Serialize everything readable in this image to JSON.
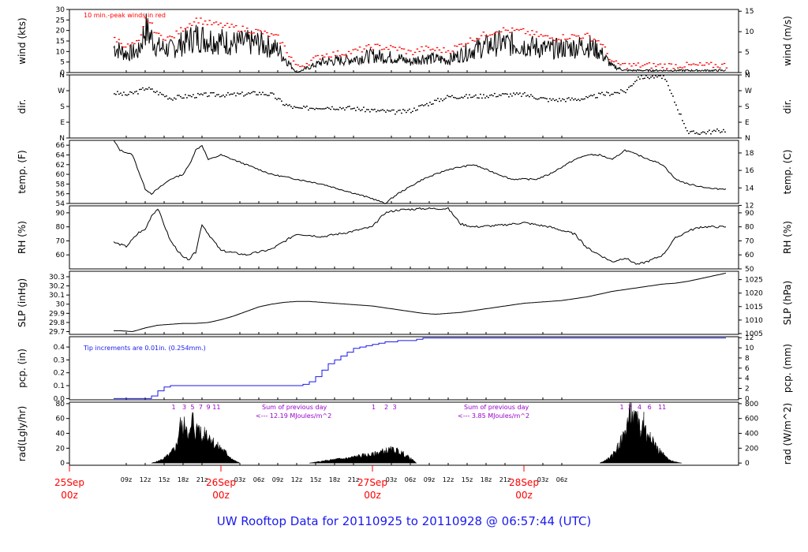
{
  "footer": {
    "prefix": "UW Rooftop Data for ",
    "start": "20110925",
    "to_word": "to",
    "end": "20110928",
    "at_word": "@",
    "time": "06:57:44",
    "tz": "(UTC)",
    "color": "#1a1aee"
  },
  "colors": {
    "trace": "#000000",
    "peak": "#ff0000",
    "precip": "#1a1aee",
    "radiation_labels": "#9900cc",
    "date_labels": "#ff0000"
  },
  "time_axis": {
    "tick_labels": [
      "09z",
      "12z",
      "15z",
      "18z",
      "21z",
      "03z",
      "06z",
      "09z",
      "12z",
      "15z",
      "18z",
      "21z",
      "03z",
      "06z",
      "09z",
      "12z",
      "15z",
      "18z",
      "21z",
      "03z",
      "06z"
    ],
    "date_labels": [
      {
        "day": "25Sep",
        "hour": "00z"
      },
      {
        "day": "26Sep",
        "hour": "00z"
      },
      {
        "day": "27Sep",
        "hour": "00z"
      },
      {
        "day": "28Sep",
        "hour": "00z"
      }
    ]
  },
  "chart_data": [
    {
      "type": "line",
      "ylabel": "wind (kts)",
      "ylabel_right": "wind (m/s)",
      "yticks": [
        0,
        5,
        10,
        15,
        20,
        25,
        30
      ],
      "yticks_right": [
        0,
        5,
        10,
        15
      ],
      "annotation": "10 min.-peak winds in red",
      "series": [
        {
          "x": [
            7,
            9,
            11,
            12,
            14,
            16,
            18,
            20,
            22,
            26,
            30,
            33,
            36,
            40,
            44,
            48,
            52,
            54,
            56,
            60,
            64,
            68,
            72,
            76,
            80,
            82,
            84,
            86,
            88,
            90,
            94,
            98,
            102,
            104
          ],
          "values": [
            12,
            9,
            10,
            21,
            12,
            11,
            14,
            17,
            16,
            14,
            14,
            11,
            0,
            5,
            6,
            8,
            7,
            5,
            7,
            6,
            11,
            14,
            13,
            11,
            12,
            13,
            10,
            3,
            1,
            1,
            1,
            1,
            1,
            1
          ]
        },
        {
          "x": [
            7,
            9,
            11,
            12,
            14,
            16,
            18,
            20,
            22,
            26,
            30,
            33,
            36,
            40,
            44,
            48,
            52,
            54,
            56,
            60,
            64,
            68,
            72,
            76,
            80,
            82,
            84,
            86,
            88,
            90,
            94,
            98,
            102,
            104
          ],
          "values": [
            16,
            12,
            14,
            26,
            17,
            16,
            21,
            25,
            23,
            21,
            19,
            16,
            2,
            8,
            9,
            12,
            11,
            9,
            11,
            10,
            16,
            20,
            19,
            16,
            17,
            17,
            14,
            4,
            3,
            3,
            3,
            3,
            3,
            3
          ]
        }
      ]
    },
    {
      "type": "scatter",
      "ylabel": "dir.",
      "ylabel_right": "dir.",
      "yticks": [
        "N",
        "E",
        "S",
        "W",
        "N"
      ],
      "yticks_right": [
        "N",
        "E",
        "S",
        "W",
        "N"
      ],
      "series": [
        {
          "x": [
            7,
            9,
            11,
            12,
            14,
            16,
            18,
            20,
            22,
            26,
            30,
            32,
            34,
            36,
            40,
            44,
            48,
            52,
            54,
            56,
            60,
            64,
            68,
            72,
            76,
            80,
            82,
            84,
            86,
            88,
            90,
            94,
            98,
            102,
            104
          ],
          "values": [
            260,
            250,
            270,
            290,
            260,
            230,
            240,
            245,
            250,
            250,
            260,
            250,
            195,
            170,
            180,
            175,
            160,
            150,
            160,
            190,
            240,
            240,
            250,
            250,
            220,
            225,
            230,
            250,
            260,
            270,
            350,
            355,
            30,
            40,
            50
          ]
        }
      ]
    },
    {
      "type": "line",
      "ylabel": "temp. (F)",
      "ylabel_right": "temp. (C)",
      "yticks": [
        54,
        56,
        58,
        60,
        62,
        64,
        66
      ],
      "yticks_right": [
        12,
        14,
        16,
        18
      ],
      "series": [
        {
          "x": [
            7,
            8,
            10,
            12,
            13,
            14,
            16,
            18,
            19,
            20,
            21,
            22,
            24,
            28,
            32,
            36,
            40,
            44,
            48,
            50,
            52,
            56,
            60,
            64,
            68,
            70,
            72,
            74,
            76,
            80,
            82,
            84,
            86,
            88,
            90,
            92,
            94,
            96,
            98,
            100,
            102,
            104
          ],
          "values": [
            67,
            65,
            64,
            57,
            56,
            57,
            59,
            60,
            62,
            65,
            66,
            63,
            64,
            62,
            60,
            59,
            58,
            56.5,
            55,
            54,
            56,
            59,
            61,
            62,
            60,
            59,
            59,
            59,
            60,
            63,
            64,
            64,
            63,
            65,
            64,
            63,
            62,
            59,
            58,
            57.5,
            57,
            57
          ]
        }
      ]
    },
    {
      "type": "line",
      "ylabel": "RH (%)",
      "ylabel_right": "RH (%)",
      "yticks": [
        60,
        70,
        80,
        90
      ],
      "yticks_right": [
        50,
        60,
        70,
        80,
        90
      ],
      "series": [
        {
          "x": [
            7,
            9,
            11,
            12,
            13,
            14,
            16,
            18,
            19,
            20,
            21,
            22,
            24,
            28,
            32,
            36,
            40,
            44,
            48,
            50,
            52,
            56,
            60,
            62,
            64,
            68,
            72,
            76,
            80,
            82,
            84,
            86,
            88,
            90,
            92,
            94,
            96,
            98,
            100,
            104
          ],
          "values": [
            69,
            66,
            76,
            78,
            88,
            93,
            70,
            58,
            57,
            62,
            82,
            75,
            63,
            60,
            64,
            75,
            73,
            76,
            80,
            90,
            92,
            93,
            93,
            82,
            80,
            81,
            83,
            80,
            75,
            65,
            60,
            55,
            58,
            53,
            56,
            60,
            72,
            77,
            80,
            80
          ]
        }
      ]
    },
    {
      "type": "line",
      "ylabel": "SLP (inHg)",
      "ylabel_right": "SLP (hPa)",
      "yticks": [
        29.7,
        29.8,
        29.9,
        30.0,
        30.1,
        30.2,
        30.3
      ],
      "yticks_right": [
        1005,
        1010,
        1015,
        1020,
        1025
      ],
      "series": [
        {
          "x": [
            7,
            8,
            10,
            12,
            14,
            16,
            18,
            20,
            22,
            24,
            26,
            28,
            30,
            32,
            34,
            36,
            38,
            40,
            42,
            44,
            46,
            48,
            50,
            52,
            54,
            56,
            58,
            60,
            62,
            64,
            66,
            68,
            70,
            72,
            74,
            76,
            78,
            80,
            82,
            84,
            86,
            88,
            90,
            92,
            94,
            96,
            98,
            100,
            102,
            104
          ],
          "values": [
            29.71,
            29.71,
            29.7,
            29.74,
            29.77,
            29.78,
            29.79,
            29.79,
            29.8,
            29.83,
            29.87,
            29.92,
            29.97,
            30.0,
            30.02,
            30.03,
            30.03,
            30.02,
            30.01,
            30.0,
            29.99,
            29.98,
            29.96,
            29.94,
            29.92,
            29.9,
            29.89,
            29.9,
            29.91,
            29.93,
            29.95,
            29.97,
            29.99,
            30.01,
            30.02,
            30.03,
            30.04,
            30.06,
            30.08,
            30.11,
            30.14,
            30.16,
            30.18,
            30.2,
            30.22,
            30.23,
            30.25,
            30.28,
            30.31,
            30.34
          ]
        }
      ]
    },
    {
      "type": "area",
      "ylabel": "pcp. (in)",
      "ylabel_right": "pcp. (mm)",
      "yticks": [
        0.0,
        0.1,
        0.2,
        0.3,
        0.4
      ],
      "yticks_right": [
        0,
        2,
        4,
        6,
        8,
        10,
        12
      ],
      "annotation": "Tip increments are 0.01in. (0.254mm.)",
      "series": [
        {
          "x": [
            7,
            12,
            13,
            14,
            15,
            16,
            36,
            37,
            38,
            39,
            40,
            41,
            42,
            43,
            44,
            45,
            46,
            47,
            48,
            49,
            50,
            52,
            55,
            56,
            58,
            60,
            104
          ],
          "values": [
            0,
            0,
            0.02,
            0.06,
            0.09,
            0.1,
            0.1,
            0.11,
            0.13,
            0.17,
            0.22,
            0.27,
            0.3,
            0.33,
            0.36,
            0.39,
            0.4,
            0.41,
            0.42,
            0.43,
            0.44,
            0.45,
            0.46,
            0.47,
            0.47,
            0.47,
            0.47
          ]
        }
      ]
    },
    {
      "type": "area",
      "ylabel": "rad(Lgly/hr)",
      "ylabel_right": "rad (W/m^2)",
      "yticks": [
        0,
        20,
        40,
        60,
        80
      ],
      "yticks_right": [
        0,
        200,
        400,
        600,
        800
      ],
      "notes": [
        {
          "line1": "Sum of previous day",
          "line2": "<--- 12.19 MJoules/m^2"
        },
        {
          "line1": "Sum of previous day",
          "line2": "<--- 3.85 MJoules/m^2"
        }
      ],
      "hour_marks": [
        {
          "x": 16.5,
          "label": "1"
        },
        {
          "x": 18.2,
          "label": "3"
        },
        {
          "x": 19.5,
          "label": "5"
        },
        {
          "x": 20.8,
          "label": "7"
        },
        {
          "x": 22.0,
          "label": "9"
        },
        {
          "x": 23.3,
          "label": "11"
        },
        {
          "x": 48.2,
          "label": "1"
        },
        {
          "x": 50.2,
          "label": "2"
        },
        {
          "x": 51.5,
          "label": "3"
        },
        {
          "x": 87.5,
          "label": "1"
        },
        {
          "x": 88.8,
          "label": "2"
        },
        {
          "x": 90.3,
          "label": "4"
        },
        {
          "x": 91.9,
          "label": "6"
        },
        {
          "x": 93.9,
          "label": "11"
        }
      ],
      "series": [
        {
          "x": [
            13,
            14,
            15,
            16,
            17,
            17.5,
            18,
            18.5,
            19,
            19.5,
            20,
            20.5,
            21,
            21.5,
            22,
            22.5,
            23,
            24,
            25,
            26,
            27,
            38,
            40,
            42,
            44,
            46,
            48,
            49,
            50,
            51,
            52,
            53,
            54,
            55,
            84,
            85,
            86,
            87,
            88,
            88.5,
            89,
            89.5,
            90,
            90.5,
            91,
            91.5,
            92,
            92.5,
            93,
            94,
            95,
            96,
            97
          ],
          "values": [
            0,
            3,
            8,
            15,
            30,
            65,
            55,
            70,
            40,
            75,
            50,
            65,
            35,
            58,
            45,
            42,
            30,
            25,
            15,
            5,
            0,
            0,
            3,
            6,
            8,
            12,
            14,
            18,
            20,
            22,
            20,
            15,
            8,
            0,
            0,
            5,
            12,
            30,
            48,
            70,
            85,
            65,
            82,
            50,
            75,
            40,
            55,
            38,
            25,
            15,
            5,
            2,
            0
          ]
        }
      ]
    }
  ]
}
